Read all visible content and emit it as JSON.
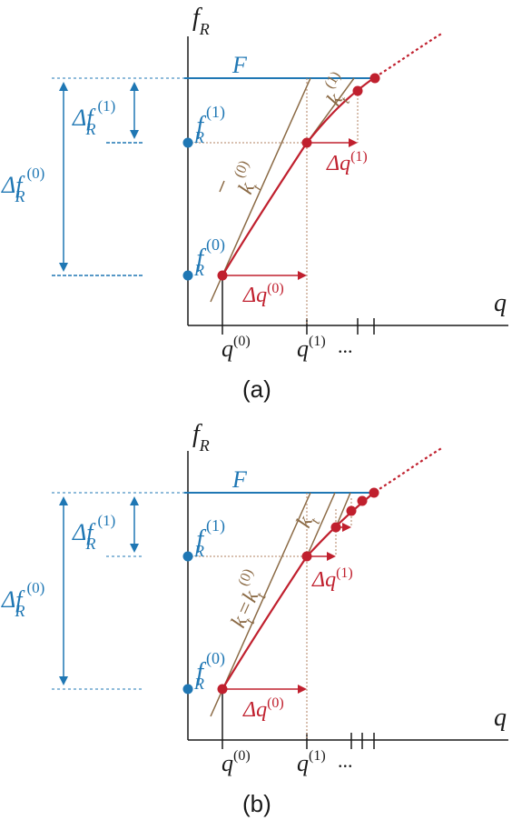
{
  "colors": {
    "axis": "#1a1a1a",
    "blue": "#1f77b4",
    "red": "#c0202e",
    "brown": "#8b6a45",
    "dashed_brown": "#b08060"
  },
  "panel_a": {
    "caption": "(a)",
    "axis_y_label": "f",
    "axis_y_sub": "R",
    "axis_x_label": "q",
    "F_label": "F",
    "fr1_main": "f",
    "fr1_sub": "R",
    "fr1_sup": "(1)",
    "fr0_main": "f",
    "fr0_sub": "R",
    "fr0_sup": "(0)",
    "delta_fr1_prefix": "Δf",
    "delta_fr1_sub": "R",
    "delta_fr1_sup": "(1)",
    "delta_fr0_prefix": "Δf",
    "delta_fr0_sub": "R",
    "delta_fr0_sup": "(0)",
    "dq0_prefix": "Δq",
    "dq0_sup": "(0)",
    "dq1_prefix": "Δq",
    "dq1_sup": "(1)",
    "kt0_main": "k",
    "kt0_sub": "t",
    "kt0_sup": "(0)",
    "kt1_main": "k",
    "kt1_sub": "t",
    "kt1_sup": "(1)",
    "q0_main": "q",
    "q0_sup": "(0)",
    "q1_main": "q",
    "q1_sup": "(1)",
    "ellipsis": "..."
  },
  "panel_b": {
    "caption": "(b)",
    "axis_y_label": "f",
    "axis_y_sub": "R",
    "axis_x_label": "q",
    "F_label": "F",
    "fr1_main": "f",
    "fr1_sub": "R",
    "fr1_sup": "(1)",
    "fr0_main": "f",
    "fr0_sub": "R",
    "fr0_sup": "(0)",
    "delta_fr1_prefix": "Δf",
    "delta_fr1_sub": "R",
    "delta_fr1_sup": "(1)",
    "delta_fr0_prefix": "Δf",
    "delta_fr0_sub": "R",
    "delta_fr0_sup": "(0)",
    "dq0_prefix": "Δq",
    "dq0_sup": "(0)",
    "dq1_prefix": "Δq",
    "dq1_sup": "(1)",
    "kt_eq_main": "k",
    "kt_eq_sub": "t",
    "kt_eq_mid": "=",
    "kt_eq_main2": "k",
    "kt_eq_sub2": "t",
    "kt_eq_sup2": "(0)",
    "kt_main": "k",
    "kt_sub": "t",
    "q0_main": "q",
    "q0_sup": "(0)",
    "q1_main": "q",
    "q1_sup": "(1)",
    "ellipsis": "..."
  }
}
